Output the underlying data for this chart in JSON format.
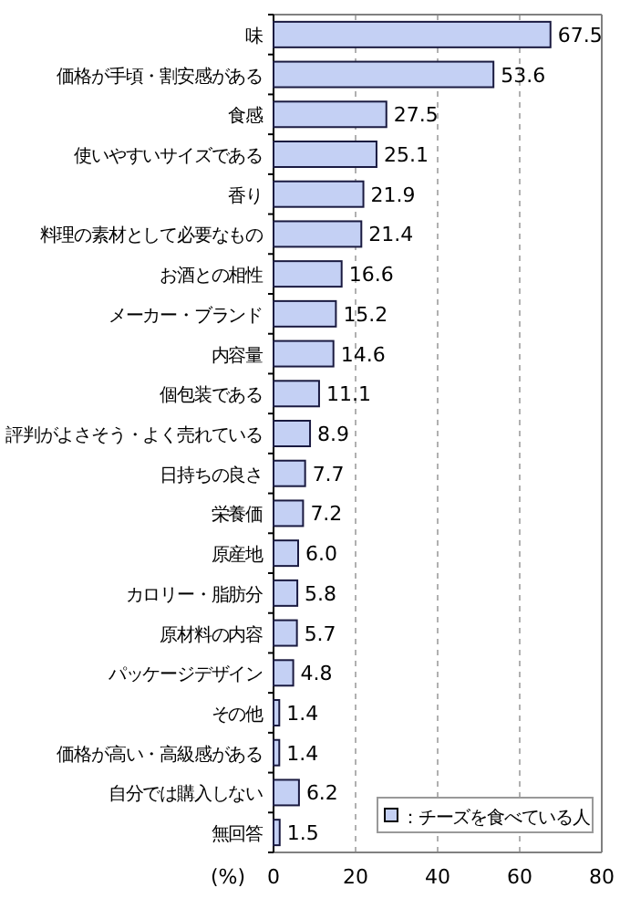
{
  "chart_data": {
    "type": "bar",
    "orientation": "horizontal",
    "xlabel": "(%)",
    "categories": [
      "味",
      "価格が手頃・割安感がある",
      "食感",
      "使いやすいサイズである",
      "香り",
      "料理の素材として必要なもの",
      "お酒との相性",
      "メーカー・ブランド",
      "内容量",
      "個包装である",
      "評判がよさそう・よく売れている",
      "日持ちの良さ",
      "栄養価",
      "原産地",
      "カロリー・脂肪分",
      "原材料の内容",
      "パッケージデザイン",
      "その他",
      "価格が高い・高級感がある",
      "自分では購入しない",
      "無回答"
    ],
    "series": [
      {
        "name": "：チーズを食べている人",
        "color": "#c4d0f4",
        "values": [
          67.5,
          53.6,
          27.5,
          25.1,
          21.9,
          21.4,
          16.6,
          15.2,
          14.6,
          11.1,
          8.9,
          7.7,
          7.2,
          6.0,
          5.8,
          5.7,
          4.8,
          1.4,
          1.4,
          6.2,
          1.5
        ],
        "value_labels": [
          "67.5",
          "53.6",
          "27.5",
          "25.1",
          "21.9",
          "21.4",
          "16.6",
          "15.2",
          "14.6",
          "11.1",
          "8.9",
          "7.7",
          "7.2",
          "6.0",
          "5.8",
          "5.7",
          "4.8",
          "1.4",
          "1.4",
          "6.2",
          "1.5"
        ]
      }
    ],
    "xlim": [
      0,
      80
    ],
    "xticks": [
      0,
      20,
      40,
      60,
      80
    ],
    "grid": "x",
    "legend": "bottom right"
  }
}
